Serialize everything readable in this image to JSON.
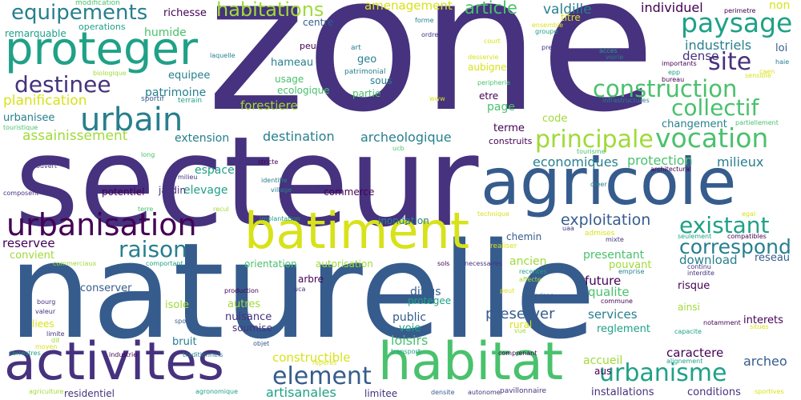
{
  "colors": {
    "background": "#ffffff",
    "palette": [
      "#440154",
      "#46327e",
      "#365c8d",
      "#277f8e",
      "#1fa187",
      "#4ac16d",
      "#a0da39",
      "#d8e219"
    ]
  },
  "words": [
    {
      "text": "zone",
      "color": "#46327e"
    },
    {
      "text": "secteur",
      "color": "#46327e"
    },
    {
      "text": "naturelle",
      "color": "#365c8d"
    },
    {
      "text": "agricole",
      "color": "#365c8d"
    },
    {
      "text": "batiment",
      "color": "#d8e219"
    },
    {
      "text": "activites",
      "color": "#46327e"
    },
    {
      "text": "habitat",
      "color": "#4ac16d"
    },
    {
      "text": "proteger",
      "color": "#1fa187"
    },
    {
      "text": "urbanisation",
      "color": "#440154"
    },
    {
      "text": "urbain",
      "color": "#277f8e"
    },
    {
      "text": "equipements",
      "color": "#277f8e"
    },
    {
      "text": "destinee",
      "color": "#46327e"
    },
    {
      "text": "paysage",
      "color": "#1fa187"
    },
    {
      "text": "site",
      "color": "#46327e"
    },
    {
      "text": "construction",
      "color": "#4ac16d"
    },
    {
      "text": "collectif",
      "color": "#4ac16d"
    },
    {
      "text": "vocation",
      "color": "#4ac16d"
    },
    {
      "text": "principale",
      "color": "#a0da39"
    },
    {
      "text": "existant",
      "color": "#1fa187"
    },
    {
      "text": "correspond",
      "color": "#277f8e"
    },
    {
      "text": "raison",
      "color": "#277f8e"
    },
    {
      "text": "urbanisme",
      "color": "#1fa187"
    },
    {
      "text": "element",
      "color": "#365c8d"
    },
    {
      "text": "habitations",
      "color": "#a0da39"
    },
    {
      "text": "planification",
      "color": "#d8e219"
    },
    {
      "text": "assainissement",
      "color": "#a0da39"
    },
    {
      "text": "exploitation",
      "color": "#365c8d"
    },
    {
      "text": "article",
      "color": "#4ac16d"
    },
    {
      "text": "valdille",
      "color": "#277f8e"
    },
    {
      "text": "individuel",
      "color": "#440154"
    },
    {
      "text": "industriels",
      "color": "#277f8e"
    },
    {
      "text": "amenagement",
      "color": "#d8e219"
    },
    {
      "text": "destination",
      "color": "#277f8e"
    },
    {
      "text": "archeologique",
      "color": "#277f8e"
    },
    {
      "text": "economiques",
      "color": "#277f8e"
    },
    {
      "text": "protection",
      "color": "#4ac16d"
    },
    {
      "text": "milieux",
      "color": "#277f8e"
    },
    {
      "text": "forestiere",
      "color": "#a0da39"
    },
    {
      "text": "patrimoine",
      "color": "#277f8e"
    },
    {
      "text": "extension",
      "color": "#277f8e"
    },
    {
      "text": "elevage",
      "color": "#1fa187"
    },
    {
      "text": "espace",
      "color": "#1fa187"
    },
    {
      "text": "potentiel",
      "color": "#440154"
    },
    {
      "text": "jardin",
      "color": "#46327e"
    },
    {
      "text": "reservee",
      "color": "#440154"
    },
    {
      "text": "convient",
      "color": "#a0da39"
    },
    {
      "text": "conserver",
      "color": "#365c8d"
    },
    {
      "text": "constructible",
      "color": "#d8e219"
    },
    {
      "text": "caractere",
      "color": "#440154"
    },
    {
      "text": "archeo",
      "color": "#365c8d"
    },
    {
      "text": "accueil",
      "color": "#a0da39"
    },
    {
      "text": "loisirs",
      "color": "#4ac16d"
    },
    {
      "text": "artisanales",
      "color": "#1fa187"
    },
    {
      "text": "services",
      "color": "#277f8e"
    },
    {
      "text": "qualite",
      "color": "#4ac16d"
    },
    {
      "text": "future",
      "color": "#440154"
    },
    {
      "text": "presentant",
      "color": "#4ac16d"
    },
    {
      "text": "pouvant",
      "color": "#a0da39"
    },
    {
      "text": "download",
      "color": "#277f8e"
    },
    {
      "text": "reseau",
      "color": "#365c8d"
    },
    {
      "text": "preserver",
      "color": "#365c8d"
    },
    {
      "text": "ancien",
      "color": "#a0da39"
    },
    {
      "text": "public",
      "color": "#365c8d"
    },
    {
      "text": "voie",
      "color": "#1fa187"
    },
    {
      "text": "diffus",
      "color": "#365c8d"
    },
    {
      "text": "protegee",
      "color": "#1fa187"
    },
    {
      "text": "nuisance",
      "color": "#46327e"
    },
    {
      "text": "soumise",
      "color": "#46327e"
    },
    {
      "text": "autres",
      "color": "#a0da39"
    },
    {
      "text": "isole",
      "color": "#a0da39"
    },
    {
      "text": "liees",
      "color": "#d8e219"
    },
    {
      "text": "bruit",
      "color": "#277f8e"
    },
    {
      "text": "hameau",
      "color": "#277f8e"
    },
    {
      "text": "usage",
      "color": "#4ac16d"
    },
    {
      "text": "ecologique",
      "color": "#4ac16d"
    },
    {
      "text": "partie",
      "color": "#4ac16d"
    },
    {
      "text": "sous",
      "color": "#277f8e"
    },
    {
      "text": "geo",
      "color": "#277f8e"
    },
    {
      "text": "aubigne",
      "color": "#d8e219"
    },
    {
      "text": "etre",
      "color": "#440154"
    },
    {
      "text": "page",
      "color": "#4ac16d"
    },
    {
      "text": "code",
      "color": "#a0da39"
    },
    {
      "text": "terme",
      "color": "#440154"
    },
    {
      "text": "construits",
      "color": "#440154"
    },
    {
      "text": "commerce",
      "color": "#440154"
    },
    {
      "text": "inondation",
      "color": "#277f8e"
    },
    {
      "text": "chemin",
      "color": "#365c8d"
    },
    {
      "text": "arbre",
      "color": "#440154"
    },
    {
      "text": "rural",
      "color": "#d8e219"
    },
    {
      "text": "reglement",
      "color": "#1fa187"
    },
    {
      "text": "interets",
      "color": "#440154"
    },
    {
      "text": "risque",
      "color": "#440154"
    },
    {
      "text": "ainsi",
      "color": "#a0da39"
    },
    {
      "text": "installations",
      "color": "#46327e"
    },
    {
      "text": "conditions",
      "color": "#46327e"
    },
    {
      "text": "changement",
      "color": "#277f8e"
    },
    {
      "text": "urbanisee",
      "color": "#277f8e"
    },
    {
      "text": "equipee",
      "color": "#277f8e"
    },
    {
      "text": "humide",
      "color": "#4ac16d"
    },
    {
      "text": "richesse",
      "color": "#440154"
    },
    {
      "text": "centre",
      "color": "#365c8d"
    },
    {
      "text": "remarquable",
      "color": "#1fa187"
    },
    {
      "text": "operations",
      "color": "#1fa187"
    },
    {
      "text": "modification",
      "color": "#4ac16d"
    },
    {
      "text": "titre",
      "color": "#d8e219"
    },
    {
      "text": "non",
      "color": "#d8e219"
    },
    {
      "text": "loi",
      "color": "#365c8d"
    },
    {
      "text": "dense",
      "color": "#46327e"
    },
    {
      "text": "orientation",
      "color": "#4ac16d"
    },
    {
      "text": "autorisation",
      "color": "#a0da39"
    },
    {
      "text": "residentiel",
      "color": "#46327e"
    },
    {
      "text": "limitee",
      "color": "#46327e"
    },
    {
      "text": "aus",
      "color": "#440154"
    },
    {
      "text": "sportif",
      "color": "#365c8d"
    },
    {
      "text": "terrain",
      "color": "#1fa187"
    },
    {
      "text": "peu",
      "color": "#440154"
    },
    {
      "text": "art",
      "color": "#277f8e"
    },
    {
      "text": "patrimonial",
      "color": "#277f8e"
    },
    {
      "text": "ensemble",
      "color": "#d8e219"
    },
    {
      "text": "groupe",
      "color": "#1fa187"
    },
    {
      "text": "court",
      "color": "#d8e219"
    },
    {
      "text": "desservie",
      "color": "#d8e219"
    },
    {
      "text": "peripherie",
      "color": "#4ac16d"
    },
    {
      "text": "acces",
      "color": "#1fa187"
    },
    {
      "text": "voirie",
      "color": "#277f8e"
    },
    {
      "text": "importants",
      "color": "#440154"
    },
    {
      "text": "bureau",
      "color": "#440154"
    },
    {
      "text": "epp",
      "color": "#1fa187"
    },
    {
      "text": "caen",
      "color": "#d8e219"
    },
    {
      "text": "haie",
      "color": "#277f8e"
    },
    {
      "text": "sensible",
      "color": "#d8e219"
    },
    {
      "text": "perimetre",
      "color": "#440154"
    },
    {
      "text": "forme",
      "color": "#277f8e"
    },
    {
      "text": "ordre",
      "color": "#46327e"
    },
    {
      "text": "prevu",
      "color": "#46327e"
    },
    {
      "text": "laquelle",
      "color": "#277f8e"
    },
    {
      "text": "biologique",
      "color": "#a0da39"
    },
    {
      "text": "touristique",
      "color": "#4ac16d"
    },
    {
      "text": "www",
      "color": "#d8e219"
    },
    {
      "text": "infrastructures",
      "color": "#277f8e"
    },
    {
      "text": "partiellement",
      "color": "#4ac16d"
    },
    {
      "text": "long",
      "color": "#4ac16d"
    },
    {
      "text": "ucb",
      "color": "#4ac16d"
    },
    {
      "text": "tourisme",
      "color": "#4ac16d"
    },
    {
      "text": "architectural",
      "color": "#440154"
    },
    {
      "text": "ouvert",
      "color": "#46327e"
    },
    {
      "text": "milieu",
      "color": "#46327e"
    },
    {
      "text": "stricte",
      "color": "#440154"
    },
    {
      "text": "identifie",
      "color": "#277f8e"
    },
    {
      "text": "village",
      "color": "#277f8e"
    },
    {
      "text": "creer",
      "color": "#277f8e"
    },
    {
      "text": "composent",
      "color": "#46327e"
    },
    {
      "text": "terre",
      "color": "#4ac16d"
    },
    {
      "text": "recul",
      "color": "#a0da39"
    },
    {
      "text": "implantation",
      "color": "#1fa187"
    },
    {
      "text": "technique",
      "color": "#d8e219"
    },
    {
      "text": "egal",
      "color": "#d8e219"
    },
    {
      "text": "uaa",
      "color": "#46327e"
    },
    {
      "text": "admises",
      "color": "#d8e219"
    },
    {
      "text": "realiser",
      "color": "#d8e219"
    },
    {
      "text": "mixte",
      "color": "#46327e"
    },
    {
      "text": "seulement",
      "color": "#1fa187"
    },
    {
      "text": "compatibles",
      "color": "#440154"
    },
    {
      "text": "continu",
      "color": "#46327e"
    },
    {
      "text": "interdite",
      "color": "#46327e"
    },
    {
      "text": "commerciaux",
      "color": "#a0da39"
    },
    {
      "text": "comportant",
      "color": "#1fa187"
    },
    {
      "text": "sols",
      "color": "#440154"
    },
    {
      "text": "necessaires",
      "color": "#46327e"
    },
    {
      "text": "recentes",
      "color": "#1fa187"
    },
    {
      "text": "affecte",
      "color": "#a0da39"
    },
    {
      "text": "emprise",
      "color": "#277f8e"
    },
    {
      "text": "production",
      "color": "#440154"
    },
    {
      "text": "uca",
      "color": "#46327e"
    },
    {
      "text": "peut",
      "color": "#d8e219"
    },
    {
      "text": "commune",
      "color": "#440154"
    },
    {
      "text": "bourg",
      "color": "#46327e"
    },
    {
      "text": "valeur",
      "color": "#46327e"
    },
    {
      "text": "sport",
      "color": "#365c8d"
    },
    {
      "text": "limite",
      "color": "#46327e"
    },
    {
      "text": "dit",
      "color": "#a0da39"
    },
    {
      "text": "moyen",
      "color": "#d8e219"
    },
    {
      "text": "autorisee",
      "color": "#365c8d"
    },
    {
      "text": "vue",
      "color": "#a0da39"
    },
    {
      "text": "notamment",
      "color": "#440154"
    },
    {
      "text": "capacite",
      "color": "#1fa187"
    },
    {
      "text": "situes",
      "color": "#d8e219"
    },
    {
      "text": "terrestres",
      "color": "#1fa187"
    },
    {
      "text": "industrie",
      "color": "#440154"
    },
    {
      "text": "traditionnels",
      "color": "#277f8e"
    },
    {
      "text": "objet",
      "color": "#365c8d"
    },
    {
      "text": "reperes",
      "color": "#d8e219"
    },
    {
      "text": "transport",
      "color": "#1fa187"
    },
    {
      "text": "comprenant",
      "color": "#440154"
    },
    {
      "text": "alignement",
      "color": "#1fa187"
    },
    {
      "text": "agriculture",
      "color": "#a0da39"
    },
    {
      "text": "agronomique",
      "color": "#1fa187"
    },
    {
      "text": "densite",
      "color": "#365c8d"
    },
    {
      "text": "autonome",
      "color": "#46327e"
    },
    {
      "text": "pavillonnaire",
      "color": "#46327e"
    },
    {
      "text": "sportives",
      "color": "#d8e219"
    }
  ]
}
